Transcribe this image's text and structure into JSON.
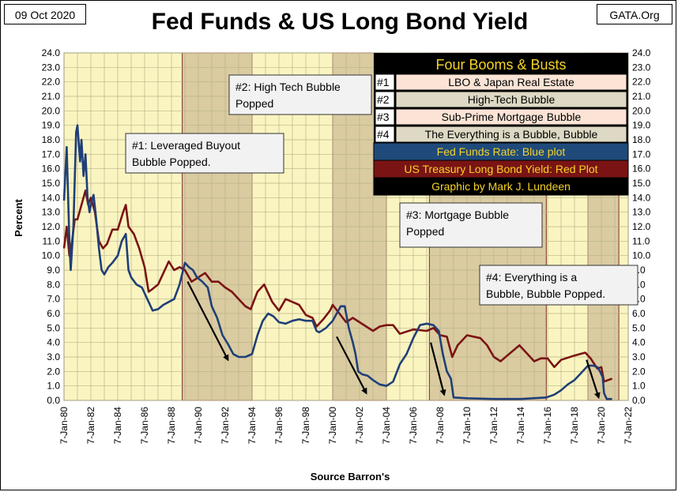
{
  "header": {
    "date": "09 Oct 2020",
    "title": "Fed Funds & US Long Bond Yield",
    "source_tag": "GATA.Org"
  },
  "chart_data": {
    "type": "line",
    "title": "Fed Funds & US Long Bond Yield",
    "xlabel": "Source Barron's",
    "ylabel": "Percent",
    "ylim": [
      0,
      24
    ],
    "y_ticks": [
      "0.0",
      "1.0",
      "2.0",
      "3.0",
      "4.0",
      "5.0",
      "6.0",
      "7.0",
      "8.0",
      "9.0",
      "10.0",
      "11.0",
      "12.0",
      "13.0",
      "14.0",
      "15.0",
      "16.0",
      "17.0",
      "18.0",
      "19.0",
      "20.0",
      "21.0",
      "22.0",
      "23.0",
      "24.0"
    ],
    "x_ticks": [
      "7-Jan-80",
      "7-Jan-82",
      "7-Jan-84",
      "7-Jan-86",
      "7-Jan-88",
      "7-Jan-90",
      "7-Jan-92",
      "7-Jan-94",
      "7-Jan-96",
      "7-Jan-98",
      "7-Jan-00",
      "7-Jan-02",
      "7-Jan-04",
      "7-Jan-06",
      "7-Jan-08",
      "7-Jan-10",
      "7-Jan-12",
      "7-Jan-14",
      "7-Jan-16",
      "7-Jan-18",
      "7-Jan-20",
      "7-Jan-22"
    ],
    "xlim": [
      1980.0,
      2022.0
    ],
    "grid": true,
    "colors": {
      "plot_bg": "#faf5c0",
      "grid": "#b8b38a",
      "fed_funds": "#1f3f78",
      "long_bond": "#7a1414",
      "bust_shade": "#d9c9a0",
      "bust_border": "#7a2020"
    },
    "bust_periods": [
      {
        "start": 1988.8,
        "end": 1994.0
      },
      {
        "start": 2000.0,
        "end": 2004.0
      },
      {
        "start": 2007.2,
        "end": 2015.9
      },
      {
        "start": 2019.0,
        "end": 2021.3
      }
    ],
    "series": [
      {
        "name": "Fed Funds Rate",
        "color": "#1f3f78",
        "x": [
          1980.0,
          1980.2,
          1980.4,
          1980.5,
          1980.7,
          1980.9,
          1981.0,
          1981.2,
          1981.3,
          1981.45,
          1981.6,
          1981.75,
          1981.9,
          1982.0,
          1982.2,
          1982.4,
          1982.6,
          1982.8,
          1983.0,
          1983.3,
          1983.6,
          1984.0,
          1984.3,
          1984.6,
          1984.8,
          1985.0,
          1985.4,
          1985.8,
          1986.2,
          1986.6,
          1987.0,
          1987.4,
          1987.8,
          1988.2,
          1988.6,
          1989.0,
          1989.3,
          1989.6,
          1989.9,
          1990.3,
          1990.7,
          1991.0,
          1991.4,
          1991.8,
          1992.2,
          1992.6,
          1993.0,
          1993.5,
          1994.0,
          1994.4,
          1994.8,
          1995.2,
          1995.6,
          1996.0,
          1996.5,
          1997.0,
          1997.5,
          1998.0,
          1998.5,
          1998.8,
          1999.0,
          1999.5,
          2000.0,
          2000.3,
          2000.6,
          2000.9,
          2001.0,
          2001.2,
          2001.5,
          2001.7,
          2001.9,
          2002.2,
          2002.6,
          2003.0,
          2003.5,
          2004.0,
          2004.5,
          2005.0,
          2005.5,
          2006.0,
          2006.5,
          2007.0,
          2007.5,
          2007.9,
          2008.2,
          2008.5,
          2008.8,
          2009.0,
          2010.0,
          2012.0,
          2014.0,
          2015.9,
          2016.5,
          2017.0,
          2017.5,
          2018.0,
          2018.5,
          2019.0,
          2019.4,
          2019.7,
          2019.9,
          2020.1,
          2020.2,
          2020.4,
          2020.8
        ],
        "values": [
          13.8,
          17.5,
          11.0,
          9.0,
          12.0,
          18.5,
          19.0,
          16.5,
          18.0,
          15.5,
          17.0,
          14.0,
          13.0,
          13.5,
          14.2,
          12.5,
          10.5,
          9.0,
          8.7,
          9.2,
          9.5,
          10.0,
          11.0,
          11.5,
          9.0,
          8.5,
          8.0,
          7.8,
          7.0,
          6.2,
          6.3,
          6.6,
          6.8,
          7.0,
          8.0,
          9.5,
          9.2,
          9.0,
          8.5,
          8.2,
          7.8,
          6.5,
          5.7,
          4.5,
          3.9,
          3.2,
          3.0,
          3.0,
          3.2,
          4.5,
          5.5,
          6.0,
          5.8,
          5.4,
          5.3,
          5.5,
          5.6,
          5.5,
          5.5,
          4.8,
          4.7,
          5.0,
          5.5,
          6.0,
          6.5,
          6.5,
          6.0,
          5.0,
          4.0,
          3.2,
          2.0,
          1.8,
          1.7,
          1.4,
          1.1,
          1.0,
          1.3,
          2.5,
          3.2,
          4.3,
          5.2,
          5.3,
          5.2,
          4.8,
          3.2,
          2.0,
          1.5,
          0.2,
          0.15,
          0.1,
          0.1,
          0.2,
          0.4,
          0.7,
          1.1,
          1.4,
          1.9,
          2.4,
          2.4,
          2.3,
          2.0,
          1.6,
          0.5,
          0.1,
          0.1
        ]
      },
      {
        "name": "US Long Bond Yield",
        "color": "#7a1414",
        "x": [
          1980.0,
          1980.2,
          1980.4,
          1980.6,
          1980.8,
          1981.0,
          1981.3,
          1981.6,
          1981.8,
          1982.0,
          1982.3,
          1982.6,
          1982.9,
          1983.2,
          1983.6,
          1984.0,
          1984.4,
          1984.6,
          1984.8,
          1985.2,
          1985.6,
          1986.0,
          1986.3,
          1986.6,
          1987.0,
          1987.4,
          1987.8,
          1988.2,
          1988.6,
          1989.0,
          1989.5,
          1990.0,
          1990.5,
          1991.0,
          1991.5,
          1992.0,
          1992.5,
          1993.0,
          1993.5,
          1993.9,
          1994.4,
          1994.9,
          1995.5,
          1996.0,
          1996.5,
          1997.0,
          1997.5,
          1998.0,
          1998.5,
          1998.8,
          1999.3,
          1999.8,
          2000.0,
          2000.5,
          2001.0,
          2001.5,
          2002.0,
          2002.5,
          2003.0,
          2003.5,
          2004.0,
          2004.5,
          2005.0,
          2006.0,
          2007.0,
          2007.5,
          2008.0,
          2008.5,
          2008.9,
          2009.3,
          2010.0,
          2011.0,
          2011.5,
          2012.0,
          2012.5,
          2013.0,
          2013.9,
          2014.5,
          2015.0,
          2015.5,
          2016.0,
          2016.5,
          2017.0,
          2018.0,
          2018.8,
          2019.2,
          2019.7,
          2020.0,
          2020.2,
          2020.5,
          2020.8
        ],
        "values": [
          10.5,
          12.0,
          10.0,
          11.0,
          12.5,
          12.5,
          13.5,
          14.5,
          13.5,
          14.0,
          13.0,
          11.0,
          10.5,
          10.8,
          11.8,
          11.8,
          13.0,
          13.5,
          12.0,
          11.5,
          10.5,
          9.2,
          7.5,
          7.7,
          8.0,
          8.8,
          9.6,
          9.0,
          9.2,
          9.0,
          8.2,
          8.5,
          8.8,
          8.2,
          8.2,
          7.8,
          7.5,
          7.0,
          6.5,
          6.3,
          7.5,
          8.0,
          6.8,
          6.2,
          7.0,
          6.8,
          6.6,
          5.9,
          5.7,
          5.1,
          5.6,
          6.2,
          6.6,
          6.0,
          5.4,
          5.7,
          5.4,
          5.1,
          4.8,
          5.1,
          5.2,
          5.2,
          4.6,
          4.9,
          4.8,
          5.0,
          4.5,
          4.4,
          3.0,
          3.8,
          4.5,
          4.3,
          3.8,
          3.0,
          2.7,
          3.1,
          3.8,
          3.2,
          2.7,
          2.9,
          2.9,
          2.3,
          2.8,
          3.1,
          3.3,
          2.9,
          2.2,
          2.3,
          1.3,
          1.4,
          1.5
        ]
      }
    ],
    "annotations": [
      {
        "label": "#1: Leveraged Buyout Bubble Popped.",
        "lines": [
          "#1: Leveraged Buyout",
          "Bubble Popped."
        ]
      },
      {
        "label": "#2: High Tech Bubble Popped",
        "lines": [
          "#2: High Tech Bubble",
          "Popped"
        ]
      },
      {
        "label": "#3: Mortgage Bubble Popped",
        "lines": [
          "#3: Mortgage Bubble",
          "Popped"
        ]
      },
      {
        "label": "#4: Everything is a Bubble, Bubble Popped.",
        "lines": [
          "#4: Everything is a",
          "Bubble, Bubble Popped."
        ]
      }
    ],
    "legend": {
      "heading": "Four Booms & Busts",
      "rows": [
        {
          "num": "#1",
          "text": "LBO & Japan Real Estate"
        },
        {
          "num": "#2",
          "text": "High-Tech Bubble"
        },
        {
          "num": "#3",
          "text": "Sub-Prime Mortgage Bubble"
        },
        {
          "num": "#4",
          "text": "The Everything is a Bubble, Bubble"
        }
      ],
      "series_rows": [
        {
          "text": "Fed Funds Rate: Blue plot",
          "bg": "#1f4a7a",
          "fg": "#f5d327"
        },
        {
          "text": "US Treasury Long Bond Yield: Red Plot",
          "bg": "#7a1414",
          "fg": "#f5d327"
        },
        {
          "text": "Graphic by Mark J. Lundeen",
          "bg": "#000000",
          "fg": "#f5d327"
        }
      ]
    }
  }
}
